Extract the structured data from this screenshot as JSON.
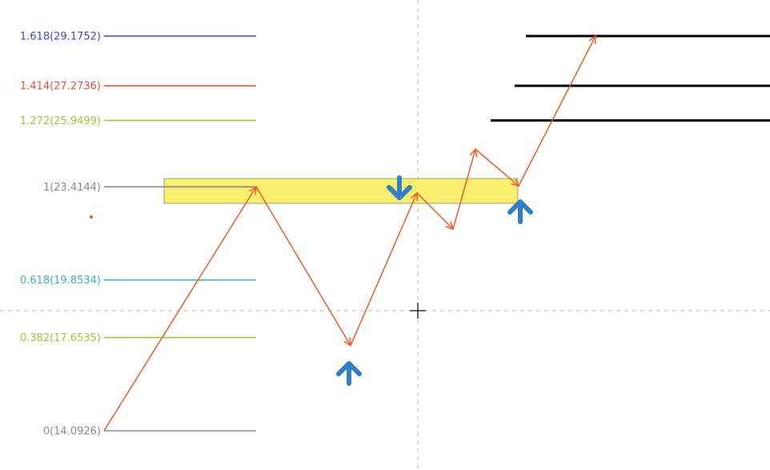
{
  "chart_data": {
    "type": "line",
    "title": "",
    "price_range": [
      12.5,
      30.6
    ],
    "fib_levels": [
      {
        "ratio": "1.618",
        "price": 29.1752,
        "label": "1.618(29.1752)",
        "color": "#3d49c4"
      },
      {
        "ratio": "1.414",
        "price": 27.2736,
        "label": "1.414(27.2736)",
        "color": "#e0533a"
      },
      {
        "ratio": "1.272",
        "price": 25.9499,
        "label": "1.272(25.9499)",
        "color": "#a5c43a"
      },
      {
        "ratio": "1",
        "price": 23.4144,
        "label": "1(23.4144)",
        "color": "#8a8a8a"
      },
      {
        "ratio": "0.618",
        "price": 19.8534,
        "label": "0.618(19.8534)",
        "color": "#38b8a8"
      },
      {
        "ratio": "0.382",
        "price": 17.6535,
        "label": "0.382(17.6535)",
        "color": "#a5c43a"
      },
      {
        "ratio": "0",
        "price": 14.0926,
        "label": "0(14.0926)",
        "color": "#8a8a8a"
      }
    ],
    "zone": {
      "top": 23.75,
      "bottom": 23.05,
      "color": "#f9ef6e"
    },
    "target_lines": [
      29.1752,
      27.2736,
      25.9499
    ],
    "path": [
      {
        "x": 0,
        "y": 14.0926
      },
      {
        "x": 1,
        "y": 23.4144
      },
      {
        "x": 2,
        "y": 17.35
      },
      {
        "x": 3,
        "y": 23.18
      },
      {
        "x": 4,
        "y": 21.8
      },
      {
        "x": 5,
        "y": 24.85
      },
      {
        "x": 6,
        "y": 23.45
      },
      {
        "x": 7,
        "y": 29.1752
      }
    ],
    "path_color": "#ef5b2b",
    "signals": [
      {
        "type": "up",
        "at_point": 2
      },
      {
        "type": "down",
        "at_point": 3
      },
      {
        "type": "up",
        "at_point": 6
      }
    ],
    "signal_color": "#2f7fcb",
    "crosshair": true
  }
}
